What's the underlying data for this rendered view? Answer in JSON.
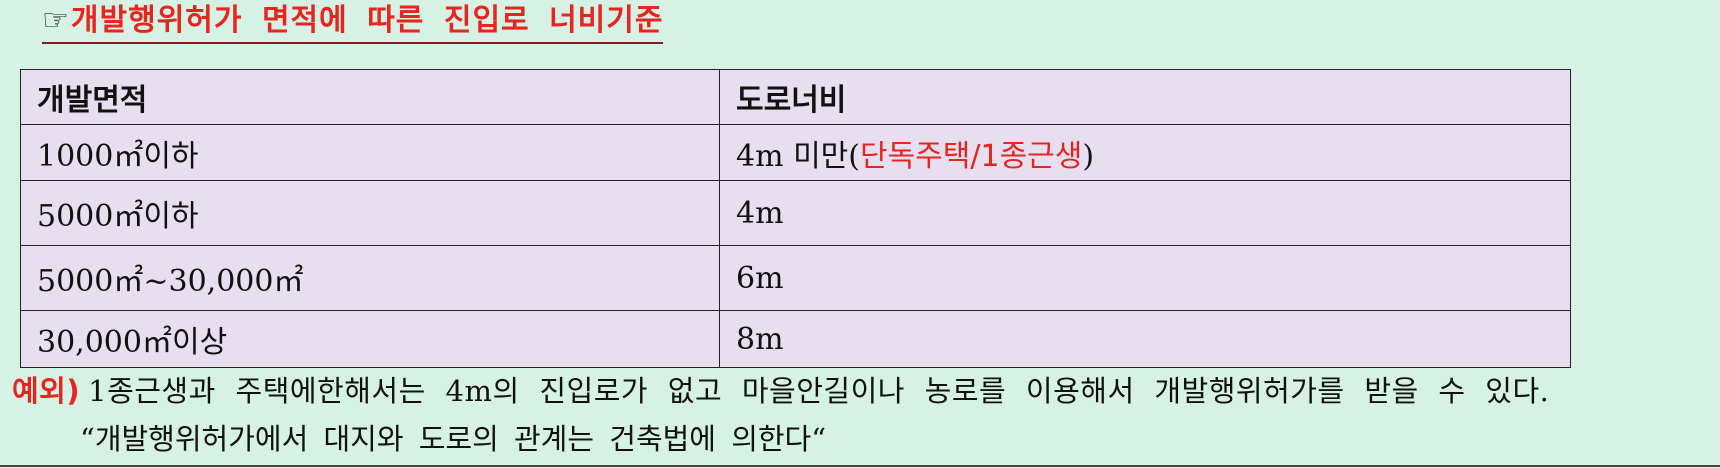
{
  "title": {
    "icon": "☞",
    "text": "개발행위허가 면적에 따른 진입로 너비기준"
  },
  "table": {
    "headers": [
      "개발면적",
      "도로너비"
    ],
    "rows": [
      {
        "area": "1000㎡이하",
        "width": "4m 미만(",
        "width_highlight": "단독주택/1종근생",
        "width_suffix": ")"
      },
      {
        "area": "5000㎡이하",
        "width": "4m"
      },
      {
        "area": "5000㎡~30,000㎡",
        "width": "6m"
      },
      {
        "area": "30,000㎡이상",
        "width": "8m"
      }
    ]
  },
  "note": {
    "label": "예외)",
    "text": "1종근생과 주택에한해서는 4m의 진입로가 없고 마을안길이나 농로를 이용해서 개발행위허가를 받을 수 있다.",
    "quote": "“개발행위허가에서 대지와 도로의 관계는 건축법에 의한다“"
  },
  "colors": {
    "background": "#d6f2e4",
    "table_fill": "#e7dff0",
    "accent_red": "#e8241f"
  }
}
